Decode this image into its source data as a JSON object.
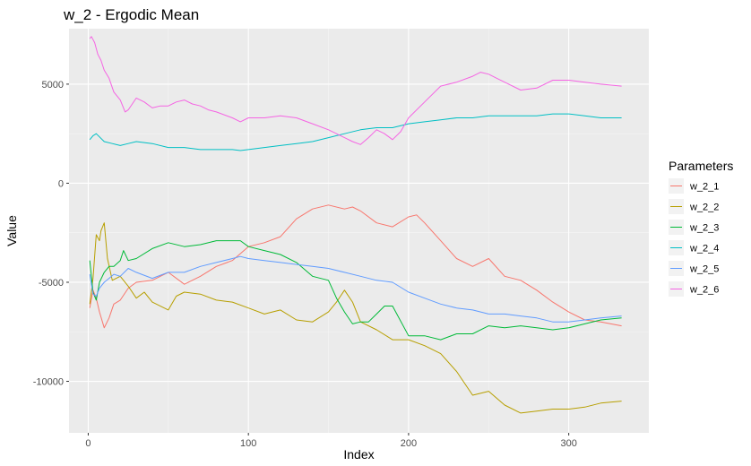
{
  "chart_data": {
    "type": "line",
    "title": "w_2 - Ergodic Mean",
    "xlabel": "Index",
    "ylabel": "Value",
    "xlim": [
      -12,
      350
    ],
    "ylim": [
      -12600,
      7800
    ],
    "x_ticks": [
      0,
      100,
      200,
      300
    ],
    "x_tick_labels": [
      "0",
      "100",
      "200",
      "300"
    ],
    "y_ticks": [
      5000,
      0,
      -5000,
      -10000
    ],
    "y_tick_labels": [
      "5000",
      "0",
      "-5000",
      "-10000"
    ],
    "grid": true,
    "legend_title": "Parameters",
    "legend_position": "right",
    "series": [
      {
        "name": "w_2_1",
        "color": "#F8766D",
        "x": [
          1,
          3,
          5,
          7,
          10,
          13,
          16,
          20,
          25,
          30,
          40,
          50,
          60,
          70,
          80,
          90,
          100,
          110,
          120,
          130,
          140,
          150,
          160,
          165,
          170,
          180,
          190,
          200,
          205,
          210,
          220,
          230,
          240,
          250,
          260,
          270,
          280,
          290,
          300,
          310,
          320,
          333
        ],
        "y": [
          -6300,
          -5400,
          -5800,
          -6500,
          -7300,
          -6800,
          -6100,
          -5900,
          -5300,
          -5000,
          -4900,
          -4500,
          -5100,
          -4700,
          -4200,
          -3900,
          -3200,
          -3000,
          -2700,
          -1800,
          -1300,
          -1100,
          -1300,
          -1200,
          -1400,
          -2000,
          -2200,
          -1700,
          -1600,
          -2000,
          -2900,
          -3800,
          -4200,
          -3800,
          -4700,
          -4900,
          -5400,
          -6000,
          -6500,
          -6900,
          -7000,
          -7200
        ]
      },
      {
        "name": "w_2_2",
        "color": "#B79F00",
        "x": [
          1,
          3,
          5,
          7,
          8,
          10,
          12,
          15,
          20,
          25,
          30,
          35,
          40,
          50,
          55,
          60,
          70,
          80,
          90,
          100,
          110,
          120,
          130,
          140,
          150,
          155,
          160,
          165,
          170,
          180,
          190,
          200,
          210,
          220,
          230,
          240,
          250,
          260,
          270,
          280,
          290,
          300,
          310,
          320,
          333
        ],
        "y": [
          -6100,
          -4800,
          -2600,
          -2900,
          -2400,
          -2000,
          -3800,
          -4900,
          -4700,
          -5200,
          -5800,
          -5500,
          -6000,
          -6400,
          -5700,
          -5500,
          -5600,
          -5900,
          -6000,
          -6300,
          -6600,
          -6400,
          -6900,
          -7000,
          -6500,
          -6000,
          -5400,
          -6000,
          -7000,
          -7400,
          -7900,
          -7900,
          -8200,
          -8600,
          -9500,
          -10700,
          -10500,
          -11200,
          -11600,
          -11500,
          -11400,
          -11400,
          -11300,
          -11100,
          -11000
        ]
      },
      {
        "name": "w_2_3",
        "color": "#00BA38",
        "x": [
          1,
          3,
          5,
          7,
          10,
          13,
          16,
          20,
          22,
          25,
          30,
          40,
          50,
          60,
          70,
          80,
          90,
          95,
          100,
          110,
          120,
          130,
          140,
          150,
          155,
          160,
          165,
          170,
          175,
          180,
          185,
          190,
          200,
          210,
          220,
          230,
          240,
          250,
          260,
          270,
          280,
          290,
          300,
          310,
          320,
          333
        ],
        "y": [
          -3900,
          -5500,
          -5900,
          -5000,
          -4500,
          -4200,
          -4200,
          -3900,
          -3400,
          -3900,
          -3800,
          -3300,
          -3000,
          -3200,
          -3100,
          -2900,
          -2900,
          -2900,
          -3200,
          -3400,
          -3600,
          -4000,
          -4700,
          -4900,
          -5800,
          -6500,
          -7100,
          -7000,
          -7000,
          -6600,
          -6200,
          -6200,
          -7700,
          -7700,
          -7900,
          -7600,
          -7600,
          -7200,
          -7300,
          -7200,
          -7300,
          -7400,
          -7300,
          -7100,
          -6900,
          -6800
        ]
      },
      {
        "name": "w_2_4",
        "color": "#00BFC4",
        "x": [
          1,
          3,
          5,
          10,
          15,
          20,
          25,
          30,
          40,
          50,
          60,
          70,
          80,
          90,
          95,
          100,
          110,
          120,
          130,
          140,
          150,
          160,
          170,
          180,
          190,
          200,
          210,
          220,
          230,
          240,
          250,
          260,
          270,
          280,
          290,
          300,
          310,
          320,
          333
        ],
        "y": [
          2200,
          2400,
          2500,
          2100,
          2000,
          1900,
          2000,
          2100,
          2000,
          1800,
          1800,
          1700,
          1700,
          1700,
          1650,
          1700,
          1800,
          1900,
          2000,
          2100,
          2300,
          2500,
          2700,
          2800,
          2800,
          3000,
          3100,
          3200,
          3300,
          3300,
          3400,
          3400,
          3400,
          3400,
          3500,
          3500,
          3400,
          3300,
          3300
        ]
      },
      {
        "name": "w_2_5",
        "color": "#619CFF",
        "x": [
          1,
          3,
          5,
          7,
          10,
          13,
          16,
          20,
          25,
          30,
          40,
          50,
          60,
          70,
          80,
          90,
          95,
          100,
          110,
          120,
          130,
          140,
          150,
          160,
          170,
          180,
          190,
          200,
          210,
          220,
          230,
          240,
          250,
          260,
          270,
          280,
          290,
          300,
          310,
          320,
          333
        ],
        "y": [
          -4600,
          -5600,
          -5700,
          -5300,
          -5000,
          -4800,
          -4600,
          -4700,
          -4300,
          -4500,
          -4800,
          -4500,
          -4500,
          -4200,
          -4000,
          -3800,
          -3700,
          -3800,
          -3900,
          -4000,
          -4100,
          -4200,
          -4300,
          -4500,
          -4700,
          -4900,
          -5000,
          -5500,
          -5800,
          -6100,
          -6300,
          -6400,
          -6600,
          -6600,
          -6700,
          -6800,
          -7000,
          -7000,
          -6900,
          -6800,
          -6700
        ]
      },
      {
        "name": "w_2_6",
        "color": "#F564E3",
        "x": [
          1,
          2,
          4,
          6,
          8,
          10,
          13,
          16,
          20,
          23,
          25,
          30,
          35,
          40,
          45,
          50,
          55,
          60,
          65,
          70,
          75,
          80,
          90,
          95,
          100,
          110,
          120,
          130,
          140,
          150,
          155,
          160,
          165,
          170,
          175,
          180,
          185,
          190,
          195,
          200,
          210,
          220,
          230,
          240,
          245,
          250,
          255,
          260,
          270,
          280,
          290,
          300,
          310,
          320,
          333
        ],
        "y": [
          7300,
          7400,
          7100,
          6500,
          6200,
          5700,
          5300,
          4600,
          4200,
          3600,
          3700,
          4300,
          4100,
          3800,
          3900,
          3900,
          4100,
          4200,
          4000,
          3900,
          3700,
          3600,
          3300,
          3100,
          3300,
          3300,
          3400,
          3300,
          3000,
          2700,
          2500,
          2300,
          2100,
          1950,
          2300,
          2700,
          2500,
          2200,
          2600,
          3300,
          4100,
          4900,
          5100,
          5400,
          5600,
          5500,
          5300,
          5100,
          4700,
          4800,
          5200,
          5200,
          5100,
          5000,
          4900
        ]
      }
    ]
  }
}
